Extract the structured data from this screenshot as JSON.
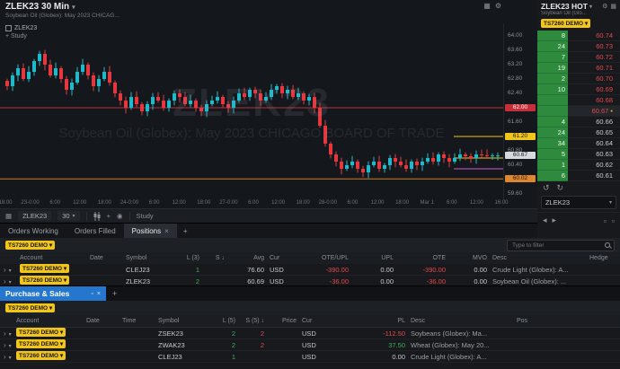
{
  "icons": {
    "caret_down": "▾",
    "settings": "⚙",
    "layout": "▦",
    "close": "×",
    "undo": "↺",
    "redo": "↻",
    "chevron_right": "›",
    "arrow_left": "◂",
    "arrow_right": "▸",
    "panel": "▫",
    "dot": "•",
    "plus": "+"
  },
  "colors": {
    "up": "#1fb9c9",
    "down": "#e5383e",
    "green": "#3fae5a",
    "red": "#e5484d",
    "yellow": "#f2c51c",
    "blue": "#2577cd",
    "dom_green": "#2e8b3d"
  },
  "chart": {
    "title": "ZLEK23 30 Min",
    "subtitle": "Soybean Oil (Globex): May 2023 CHICAG...",
    "legend_symbol": "ZLEK23",
    "add_study": "+ Study",
    "watermark_title": "ZLEK23",
    "watermark_subtitle": "Soybean Oil (Globex): May 2023 CHICAGO BOARD OF TRADE",
    "toolbar": {
      "symbol": "ZLEK23",
      "interval": "30",
      "study": "Study"
    },
    "y_labels": [
      "64.00",
      "63.60",
      "63.20",
      "62.80",
      "62.40",
      "62.00",
      "61.60",
      "61.20",
      "60.80",
      "60.40",
      "60.00",
      "59.60"
    ],
    "x_labels": [
      "18:00",
      "23-0:00",
      "6:00",
      "12:00",
      "18:00",
      "24-0:00",
      "6:00",
      "12:00",
      "18:00",
      "27-0:00",
      "6:00",
      "12:00",
      "18:00",
      "28-0:00",
      "6:00",
      "12:00",
      "18:00",
      "Mar 1",
      "6:00",
      "12:00",
      "16:00"
    ],
    "badges": [
      {
        "label": "62.00",
        "price": 62.0,
        "bg": "#c62f39",
        "fg": "#ffffff"
      },
      {
        "label": "61.20",
        "price": 61.2,
        "bg": "#f2c51c",
        "fg": "#15161a"
      },
      {
        "label": "60.67",
        "price": 60.67,
        "bg": "#d6dadf",
        "fg": "#15161a"
      },
      {
        "label": "60.02",
        "price": 60.02,
        "bg": "#e0862e",
        "fg": "#15161a"
      }
    ],
    "price_lines": [
      {
        "price": 62.0,
        "color": "#b3303a",
        "full": true
      },
      {
        "price": 60.02,
        "color": "#cf7d2c",
        "full": true
      },
      {
        "price": 61.2,
        "color": "#f2c51c",
        "full": false
      },
      {
        "price": 60.6,
        "color": "#f2c51c",
        "full": false
      },
      {
        "price": 60.3,
        "color": "#cf5bd6",
        "full": false
      }
    ],
    "closes": [
      62.6,
      62.9,
      63.1,
      62.8,
      63.0,
      63.3,
      63.5,
      63.2,
      62.9,
      63.1,
      62.8,
      62.5,
      62.7,
      63.0,
      63.2,
      62.9,
      62.6,
      62.8,
      63.0,
      62.7,
      62.4,
      62.2,
      62.0,
      62.3,
      62.1,
      61.9,
      62.1,
      62.3,
      62.2,
      62.0,
      62.2,
      62.4,
      62.3,
      62.1,
      62.2,
      62.0,
      61.9,
      62.1,
      62.2,
      62.3,
      62.1,
      62.0,
      62.2,
      62.4,
      62.3,
      62.5,
      62.4,
      62.2,
      62.3,
      62.5,
      62.6,
      62.4,
      62.5,
      62.3,
      62.4,
      62.2,
      62.3,
      62.0,
      61.5,
      61.0,
      60.7,
      60.5,
      60.3,
      60.4,
      60.5,
      60.3,
      60.2,
      60.4,
      60.5,
      60.3,
      60.4,
      60.6,
      60.5,
      60.4,
      60.3,
      60.5,
      60.4,
      60.5,
      60.6,
      60.5,
      60.7,
      60.6,
      60.5,
      60.6,
      60.7,
      60.65,
      60.6,
      60.7,
      60.68,
      60.66,
      60.67,
      60.67
    ]
  },
  "dom": {
    "title": "ZLEK23 HOT",
    "subtitle": "Soybean Oil (Glo...",
    "account": "TS7260 DEMO",
    "symbol_select": "ZLEK23",
    "rows": [
      {
        "qty": "8",
        "price": "60.74",
        "side": "ask"
      },
      {
        "qty": "24",
        "price": "60.73",
        "side": "ask"
      },
      {
        "qty": "7",
        "price": "60.72",
        "side": "ask"
      },
      {
        "qty": "19",
        "price": "60.71",
        "side": "ask"
      },
      {
        "qty": "2",
        "price": "60.70",
        "side": "ask"
      },
      {
        "qty": "10",
        "price": "60.69",
        "side": "ask"
      },
      {
        "qty": "",
        "price": "60.68",
        "side": "ask"
      },
      {
        "qty": "",
        "price": "60.67",
        "side": "ask",
        "last": true
      },
      {
        "qty": "4",
        "price": "60.66",
        "side": "bid"
      },
      {
        "qty": "24",
        "price": "60.65",
        "side": "bid"
      },
      {
        "qty": "34",
        "price": "60.64",
        "side": "bid"
      },
      {
        "qty": "5",
        "price": "60.63",
        "side": "bid"
      },
      {
        "qty": "1",
        "price": "60.62",
        "side": "bid"
      },
      {
        "qty": "6",
        "price": "60.61",
        "side": "bid"
      }
    ]
  },
  "bottom": {
    "tabs": [
      "Orders Working",
      "Orders Filled",
      "Positions"
    ],
    "add_tab": "+",
    "positions": {
      "account": "TS7260 DEMO",
      "filter_placeholder": "Type to filter",
      "columns": [
        "Account",
        "Date",
        "Symbol",
        "L (3)",
        "S ↓",
        "Avg",
        "Cur",
        "OTE/UPL",
        "UPL",
        "OTE",
        "MVO",
        "Desc",
        "Hedge"
      ],
      "rows": [
        {
          "account": "TS7260 DEMO",
          "date": "",
          "symbol": "CLEJ23",
          "l": "1",
          "s": "",
          "avg": "76.60",
          "cur": "USD",
          "ote_upl": "-390.00",
          "upl": "0.00",
          "ote": "-390.00",
          "mvo": "0.00",
          "desc": "Crude Light (Globex): A...",
          "hedge": ""
        },
        {
          "account": "TS7260 DEMO",
          "date": "",
          "symbol": "ZLEK23",
          "l": "2",
          "s": "",
          "avg": "60.69",
          "cur": "USD",
          "ote_upl": "-36.00",
          "upl": "0.00",
          "ote": "-36.00",
          "mvo": "0.00",
          "desc": "Soybean Oil (Globex): ...",
          "hedge": ""
        }
      ]
    },
    "ps": {
      "title": "Purchase & Sales",
      "account": "TS7260 DEMO",
      "columns": [
        "Account",
        "Date",
        "Time",
        "Symbol",
        "L (5)",
        "S (5) ↓",
        "Price",
        "Cur",
        "PL",
        "Desc",
        "Pos"
      ],
      "rows": [
        {
          "account": "TS7260 DEMO",
          "date": "",
          "time": "",
          "symbol": "ZSEK23",
          "l": "2",
          "s": "2",
          "price": "",
          "cur": "USD",
          "pl": "-112.50",
          "desc": "Soybeans (Globex): Ma...",
          "pos": ""
        },
        {
          "account": "TS7260 DEMO",
          "date": "",
          "time": "",
          "symbol": "ZWAK23",
          "l": "2",
          "s": "2",
          "price": "",
          "cur": "USD",
          "pl": "37.50",
          "desc": "Wheat (Globex): May 20...",
          "pos": ""
        },
        {
          "account": "TS7260 DEMO",
          "date": "",
          "time": "",
          "symbol": "CLEJ23",
          "l": "1",
          "s": "",
          "price": "",
          "cur": "USD",
          "pl": "0.00",
          "desc": "Crude Light (Globex): A...",
          "pos": ""
        }
      ]
    }
  }
}
